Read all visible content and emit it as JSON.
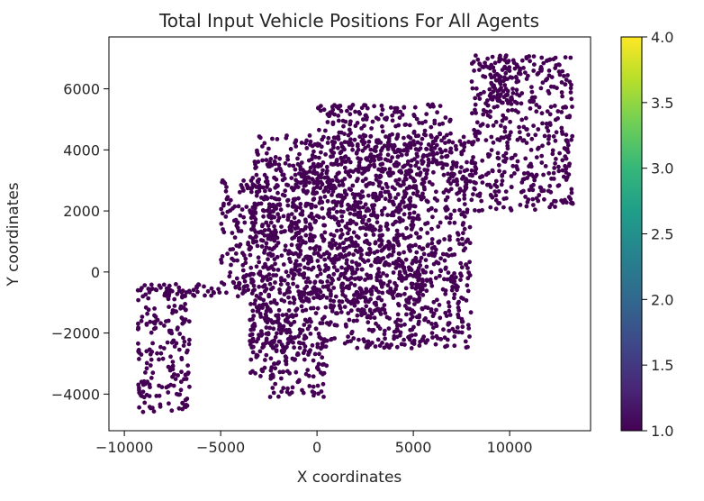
{
  "chart_data": {
    "type": "scatter",
    "title": "Total Input Vehicle Positions For All Agents",
    "xlabel": "X coordinates",
    "ylabel": "Y coordinates",
    "xlim": [
      -10800,
      14200
    ],
    "ylim": [
      -5200,
      7700
    ],
    "xticks": [
      -10000,
      -5000,
      0,
      5000,
      10000
    ],
    "xtick_labels": [
      "−10000",
      "−5000",
      "0",
      "5000",
      "10000"
    ],
    "yticks": [
      -4000,
      -2000,
      0,
      2000,
      4000,
      6000
    ],
    "ytick_labels": [
      "−4000",
      "−2000",
      "0",
      "2000",
      "4000",
      "6000"
    ],
    "grid": false,
    "point_color": "#440154",
    "point_value": 1.0,
    "colorbar": {
      "colormap": "viridis",
      "range": [
        1.0,
        4.0
      ],
      "ticks": [
        1.0,
        1.5,
        2.0,
        2.5,
        3.0,
        3.5,
        4.0
      ],
      "tick_labels": [
        "1.0",
        "1.5",
        "2.0",
        "2.5",
        "3.0",
        "3.5",
        "4.0"
      ],
      "colors": [
        "#440154",
        "#482878",
        "#3e4989",
        "#31688e",
        "#26828e",
        "#1f9e89",
        "#35b779",
        "#6ece58",
        "#b5de2b",
        "#fde725"
      ]
    },
    "point_regions": [
      {
        "x": [
          -3500,
          8000
        ],
        "y": [
          -2500,
          4500
        ]
      },
      {
        "x": [
          -1500,
          5500
        ],
        "y": [
          -1500,
          3500
        ]
      },
      {
        "x": [
          -9300,
          -6600
        ],
        "y": [
          -4600,
          -400
        ]
      },
      {
        "x": [
          -9300,
          -1500
        ],
        "y": [
          -800,
          -400
        ]
      },
      {
        "x": [
          -3500,
          -1500
        ],
        "y": [
          -3500,
          -800
        ]
      },
      {
        "x": [
          -2500,
          500
        ],
        "y": [
          -4100,
          -2000
        ]
      },
      {
        "x": [
          -5000,
          -2000
        ],
        "y": [
          -500,
          3000
        ]
      },
      {
        "x": [
          8000,
          13300
        ],
        "y": [
          2000,
          7100
        ]
      },
      {
        "x": [
          0,
          7000
        ],
        "y": [
          3500,
          5500
        ]
      },
      {
        "x": [
          9000,
          10500
        ],
        "y": [
          5500,
          7100
        ]
      }
    ]
  }
}
